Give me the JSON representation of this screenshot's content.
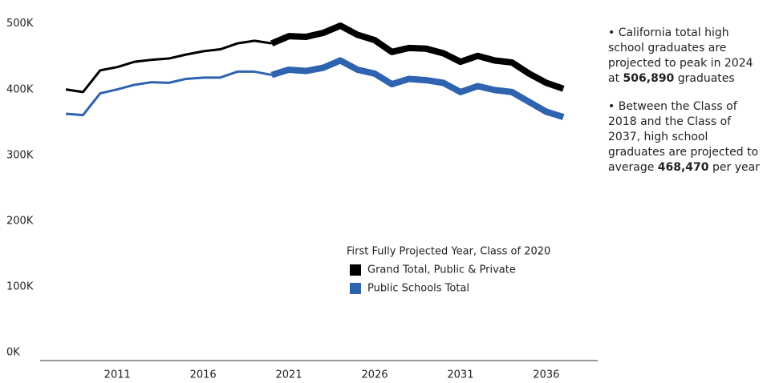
{
  "chart_data": {
    "type": "line",
    "x": [
      2008,
      2009,
      2010,
      2011,
      2012,
      2013,
      2014,
      2015,
      2016,
      2017,
      2018,
      2019,
      2020,
      2021,
      2022,
      2023,
      2024,
      2025,
      2026,
      2027,
      2028,
      2029,
      2030,
      2031,
      2032,
      2033,
      2034,
      2035,
      2036,
      2037
    ],
    "series": [
      {
        "name": "Grand Total, Public & Private",
        "color": "#000000",
        "values": [
          410000,
          406000,
          439000,
          444000,
          452000,
          455000,
          457000,
          463000,
          468000,
          471000,
          480000,
          484000,
          480000,
          491000,
          490000,
          496000,
          506890,
          493000,
          485000,
          467000,
          473000,
          472000,
          465000,
          452000,
          461000,
          454000,
          451000,
          434000,
          420000,
          411000
        ]
      },
      {
        "name": "Public Schools Total",
        "color": "#2e63b0",
        "values": [
          373000,
          371000,
          404000,
          410000,
          417000,
          421000,
          420000,
          426000,
          428000,
          428000,
          437000,
          437000,
          432000,
          440000,
          438000,
          443000,
          454000,
          440000,
          434000,
          418000,
          426000,
          424000,
          420000,
          406000,
          415000,
          409000,
          406000,
          391000,
          376000,
          368000
        ]
      }
    ],
    "projected_from": 2020,
    "legend_title": "First Fully Projected Year, Class of 2020",
    "xlim": [
      2006.5,
      2039
    ],
    "xticks": [
      2011,
      2016,
      2021,
      2026,
      2031,
      2036
    ],
    "ylim": [
      0,
      546000
    ],
    "yticks": [
      {
        "value": 0,
        "label": "0K"
      },
      {
        "value": 100000,
        "label": "100K"
      },
      {
        "value": 200000,
        "label": "200K"
      },
      {
        "value": 300000,
        "label": "300K"
      },
      {
        "value": 400000,
        "label": "400K"
      },
      {
        "value": 500000,
        "label": "500K"
      }
    ],
    "grid": false,
    "annotations": [
      [
        "• California total high school graduates are projected to peak in 2024 at ",
        "506,890",
        " graduates"
      ],
      [
        "• Between the Class of 2018 and the Class of 2037, high school graduates are projected to average ",
        "468,470",
        " per year"
      ]
    ]
  }
}
